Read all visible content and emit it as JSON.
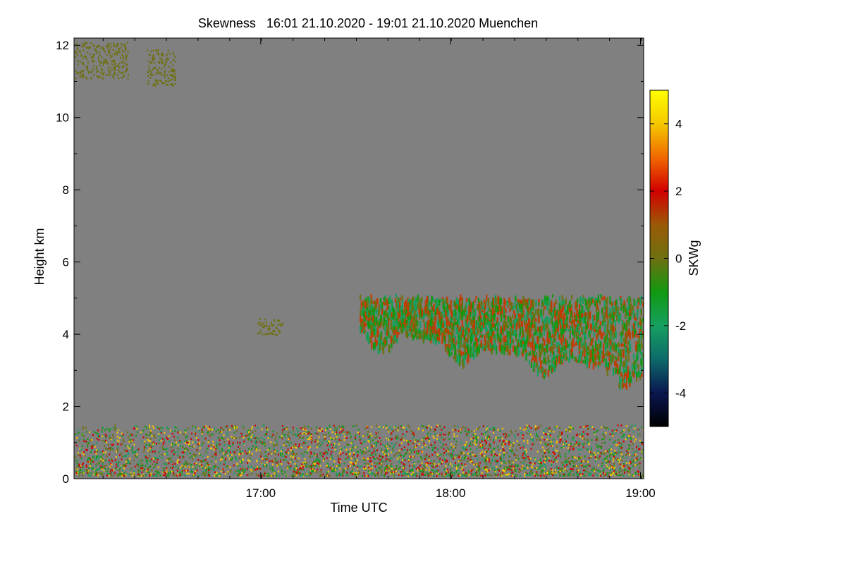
{
  "chart_data": {
    "type": "heatmap",
    "title": "Skewness   16:01 21.10.2020 - 19:01 21.10.2020 Muenchen",
    "xlabel": "Time UTC",
    "ylabel": "Height km",
    "xlim_hours": [
      16.0167,
      19.0167
    ],
    "ylim_km": [
      0,
      12.2
    ],
    "x_ticks": [
      {
        "value": 17.0,
        "label": "17:00"
      },
      {
        "value": 18.0,
        "label": "18:00"
      },
      {
        "value": 19.0,
        "label": "19:00"
      }
    ],
    "x_minor_step_hours": 0.1667,
    "y_ticks": [
      {
        "value": 0,
        "label": "0"
      },
      {
        "value": 2,
        "label": "2"
      },
      {
        "value": 4,
        "label": "4"
      },
      {
        "value": 6,
        "label": "6"
      },
      {
        "value": 8,
        "label": "8"
      },
      {
        "value": 10,
        "label": "10"
      },
      {
        "value": 12,
        "label": "12"
      }
    ],
    "colorbar": {
      "label": "SKWg",
      "range": [
        -5,
        5
      ],
      "ticks": [
        {
          "value": 4,
          "label": "4"
        },
        {
          "value": 2,
          "label": "2"
        },
        {
          "value": 0,
          "label": "0"
        },
        {
          "value": -2,
          "label": "-2"
        },
        {
          "value": -4,
          "label": "-4"
        }
      ],
      "colormap": [
        "#000000",
        "#0a1650",
        "#0d6a6a",
        "#16a060",
        "#119911",
        "#6e7010",
        "#9a5a06",
        "#d20000",
        "#f06800",
        "#f5c800",
        "#ffff00"
      ]
    },
    "background_color": "#808080",
    "features": [
      {
        "name": "cloud layer (mid level)",
        "x_range_hours": [
          17.52,
          19.02
        ],
        "height_top_km": 5.05,
        "height_base_km": [
          4.2,
          3.0
        ],
        "skewness_mean": -0.8,
        "dominant_colors": [
          "#6e7010",
          "#119911",
          "#16a060",
          "#c33a00"
        ]
      },
      {
        "name": "boundary layer noise",
        "x_range_hours": [
          16.02,
          19.02
        ],
        "height_km": [
          0.1,
          1.5
        ],
        "skewness_mean": 0.5,
        "dominant_colors": [
          "#6e7010",
          "#119911",
          "#d20000",
          "#f5c800",
          "#16a060"
        ]
      },
      {
        "name": "small cloud patch",
        "x_range_hours": [
          16.98,
          17.12
        ],
        "height_km": [
          4.0,
          4.45
        ],
        "skewness_mean": 0.1,
        "dominant_colors": [
          "#6e7010"
        ]
      },
      {
        "name": "upper cirrus fragments",
        "x_range_hours": [
          16.02,
          16.3
        ],
        "height_km": [
          11.1,
          12.1
        ],
        "skewness_mean": 0.0,
        "dominant_colors": [
          "#6e7010"
        ]
      },
      {
        "name": "upper cirrus fragments",
        "x_range_hours": [
          16.4,
          16.55
        ],
        "height_km": [
          10.9,
          11.9
        ],
        "skewness_mean": 0.0,
        "dominant_colors": [
          "#6e7010"
        ]
      }
    ]
  }
}
